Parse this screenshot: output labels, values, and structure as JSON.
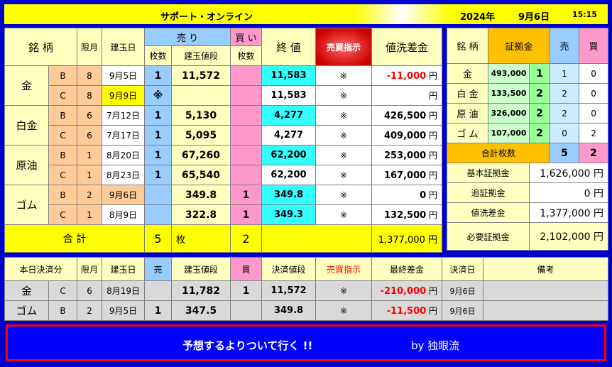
{
  "title": {
    "app": "サポート・オンライン",
    "year": "2024年",
    "date": "9月6日",
    "time": "15:15"
  },
  "main": {
    "headers": {
      "name": "銘 柄",
      "month": "限月",
      "open_date": "建玉日",
      "sell": "売 り",
      "buy": "買 い",
      "count": "枚数",
      "price": "建玉値段",
      "count2": "枚数",
      "close": "終 値",
      "order": "売買指示",
      "diff": "値洗差金"
    },
    "groups": [
      {
        "name": "金",
        "rows": [
          {
            "type": "B",
            "month": "8",
            "date": "9月5日",
            "sell_count": "1",
            "price": "11,572",
            "buy_count": "",
            "close": "11,583",
            "order": "※",
            "diff": "-11,000",
            "unit": "円"
          },
          {
            "type": "C",
            "month": "8",
            "date": "9月9日",
            "sell_count": "※",
            "price": "",
            "buy_count": "",
            "close": "11,583",
            "order": "※",
            "diff": "",
            "unit": "円"
          }
        ]
      },
      {
        "name": "白金",
        "rows": [
          {
            "type": "B",
            "month": "6",
            "date": "7月12日",
            "sell_count": "1",
            "price": "5,130",
            "buy_count": "",
            "close": "4,277",
            "order": "※",
            "diff": "426,500",
            "unit": "円"
          },
          {
            "type": "C",
            "month": "6",
            "date": "7月17日",
            "sell_count": "1",
            "price": "5,095",
            "buy_count": "",
            "close": "4,277",
            "order": "※",
            "diff": "409,000",
            "unit": "円"
          }
        ]
      },
      {
        "name": "原油",
        "rows": [
          {
            "type": "B",
            "month": "1",
            "date": "8月20日",
            "sell_count": "1",
            "price": "67,260",
            "buy_count": "",
            "close": "62,200",
            "order": "※",
            "diff": "253,000",
            "unit": "円"
          },
          {
            "type": "C",
            "month": "1",
            "date": "8月23日",
            "sell_count": "1",
            "price": "65,540",
            "buy_count": "",
            "close": "62,200",
            "order": "※",
            "diff": "167,000",
            "unit": "円"
          }
        ]
      },
      {
        "name": "ゴム",
        "rows": [
          {
            "type": "B",
            "month": "2",
            "date": "9月6日",
            "sell_count": "",
            "price": "349.8",
            "buy_count": "1",
            "close": "349.8",
            "order": "※",
            "diff": "0",
            "unit": "円"
          },
          {
            "type": "C",
            "month": "1",
            "date": "8月9日",
            "sell_count": "",
            "price": "322.8",
            "buy_count": "1",
            "close": "349.3",
            "order": "※",
            "diff": "132,500",
            "unit": "円"
          }
        ]
      }
    ],
    "total": {
      "label": "合 計",
      "sell": "5",
      "unit": "枚",
      "buy": "2",
      "diff": "1,377,000",
      "yen": "円"
    }
  },
  "margin": {
    "headers": {
      "name": "銘 柄",
      "deposit": "証拠金",
      "sell": "売",
      "buy": "買"
    },
    "rows": [
      {
        "name": "金",
        "amount": "493,000",
        "mult": "1",
        "sell": "1",
        "buy": "0"
      },
      {
        "name": "白 金",
        "amount": "133,500",
        "mult": "2",
        "sell": "2",
        "buy": "0"
      },
      {
        "name": "原 油",
        "amount": "326,000",
        "mult": "2",
        "sell": "2",
        "buy": "0"
      },
      {
        "name": "ゴ ム",
        "amount": "107,000",
        "mult": "2",
        "sell": "0",
        "buy": "2"
      }
    ],
    "total_count_label": "合計枚数",
    "total_sell": "5",
    "total_buy": "2",
    "summary": [
      {
        "label": "基本証拠金",
        "value": "1,626,000",
        "unit": "円"
      },
      {
        "label": "追証拠金",
        "value": "0",
        "unit": "円"
      },
      {
        "label": "値洗差金",
        "value": "1,377,000",
        "unit": "円"
      },
      {
        "label": "必要証拠金",
        "value": "2,102,000",
        "unit": "円"
      }
    ]
  },
  "settled": {
    "headers": {
      "name": "本日決済分",
      "month": "限月",
      "date": "建玉日",
      "sell": "売",
      "price": "建玉値段",
      "buy": "買",
      "settle_price": "決済値段",
      "order": "売買指示",
      "final": "最終差金",
      "settle_date": "決済日",
      "note": "備考"
    },
    "rows": [
      {
        "name": "金",
        "type": "C",
        "month": "6",
        "date": "8月19日",
        "sell": "",
        "price": "11,782",
        "buy": "1",
        "settle_price": "11,572",
        "order": "※",
        "final": "-210,000",
        "unit": "円",
        "settle_date": "9月6日",
        "note": ""
      },
      {
        "name": "ゴム",
        "type": "B",
        "month": "2",
        "date": "9月5日",
        "sell": "1",
        "price": "347.5",
        "buy": "",
        "settle_price": "349.8",
        "order": "※",
        "final": "-11,500",
        "unit": "円",
        "settle_date": "9月6日",
        "note": ""
      }
    ]
  },
  "banner": {
    "slogan": "予想するよりついて行く !!",
    "author": "by 独眼流"
  },
  "colors": {
    "frame": "#0000cc",
    "header": "#ffffc0",
    "sell": "#99ccff",
    "buy": "#ff99cc",
    "close": "#33ffff",
    "total": "#ffff00",
    "loss": "#ff0000"
  }
}
